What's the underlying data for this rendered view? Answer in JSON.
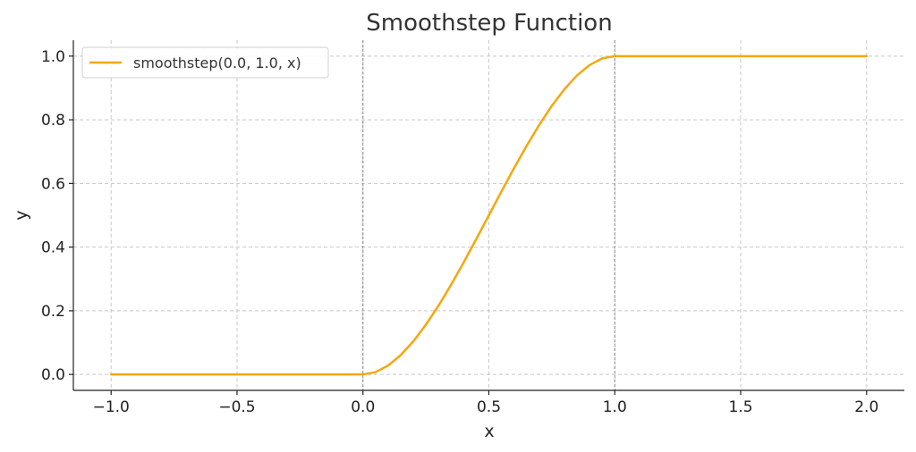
{
  "chart_data": {
    "type": "line",
    "title": "Smoothstep Function",
    "xlabel": "x",
    "ylabel": "y",
    "xlim": [
      -1.15,
      2.15
    ],
    "ylim": [
      -0.05,
      1.05
    ],
    "x_ticks": [
      -1.0,
      -0.5,
      0.0,
      0.5,
      1.0,
      1.5,
      2.0
    ],
    "x_tick_labels": [
      "−1.0",
      "−0.5",
      "0.0",
      "0.5",
      "1.0",
      "1.5",
      "2.0"
    ],
    "y_ticks": [
      0.0,
      0.2,
      0.4,
      0.6,
      0.8,
      1.0
    ],
    "y_tick_labels": [
      "0.0",
      "0.2",
      "0.4",
      "0.6",
      "0.8",
      "1.0"
    ],
    "grid": true,
    "reference_lines_x": [
      0.0,
      1.0
    ],
    "legend_position": "top-left",
    "series": [
      {
        "name": "smoothstep(0.0, 1.0, x)",
        "color": "#f5a70e",
        "x": [
          -1.0,
          -0.75,
          -0.5,
          -0.25,
          0.0,
          0.05,
          0.1,
          0.15,
          0.2,
          0.25,
          0.3,
          0.35,
          0.4,
          0.45,
          0.5,
          0.55,
          0.6,
          0.65,
          0.7,
          0.75,
          0.8,
          0.85,
          0.9,
          0.95,
          1.0,
          1.25,
          1.5,
          1.75,
          2.0
        ],
        "y": [
          0.0,
          0.0,
          0.0,
          0.0,
          0.0,
          0.0073,
          0.028,
          0.0608,
          0.104,
          0.1563,
          0.216,
          0.2818,
          0.352,
          0.4253,
          0.5,
          0.5748,
          0.648,
          0.7183,
          0.784,
          0.8438,
          0.896,
          0.9393,
          0.972,
          0.9928,
          1.0,
          1.0,
          1.0,
          1.0,
          1.0
        ]
      }
    ]
  }
}
